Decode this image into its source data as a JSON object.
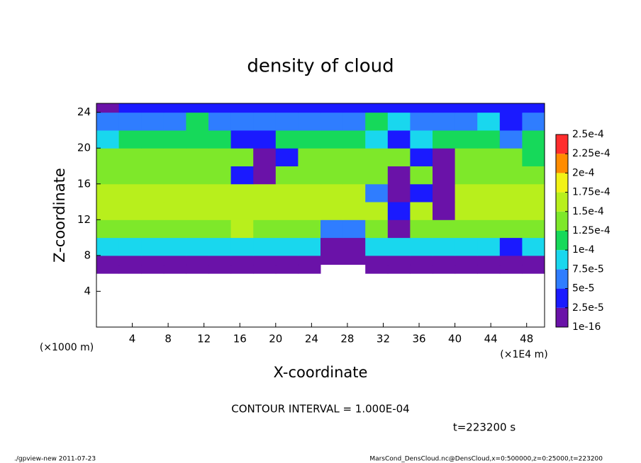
{
  "chart_data": {
    "type": "heatmap",
    "title": "density of cloud",
    "xlabel": "X-coordinate",
    "ylabel": "Z-coordinate",
    "x_unit": "(×1E4 m)",
    "y_unit": "(×1000 m)",
    "note": "CONTOUR INTERVAL = 1.000E-04",
    "time": "t=223200 s",
    "footer_left": "./gpview-new  2011-07-23",
    "footer_right": "MarsCond_DensCloud.nc@DensCloud,x=0:500000,z=0:25000,t=223200",
    "xlim": [
      0,
      50
    ],
    "ylim": [
      0,
      25
    ],
    "xticks": [
      4,
      8,
      12,
      16,
      20,
      24,
      28,
      32,
      36,
      40,
      44,
      48
    ],
    "yticks": [
      4,
      8,
      12,
      16,
      20,
      24
    ],
    "x_edges": [
      0,
      2.5,
      5,
      7.5,
      10,
      12.5,
      15,
      17.5,
      20,
      22.5,
      25,
      27.5,
      30,
      32.5,
      35,
      37.5,
      40,
      42.5,
      45,
      47.5,
      50
    ],
    "z_edges": [
      0,
      6,
      7,
      8,
      10,
      12,
      14,
      16,
      18,
      20,
      22,
      24,
      25
    ],
    "values": [
      [
        null,
        null,
        null,
        null,
        null,
        null,
        null,
        null,
        null,
        null,
        null,
        null,
        null,
        null,
        null,
        null,
        null,
        null,
        null,
        null
      ],
      [
        1e-05,
        1e-05,
        1e-05,
        1e-05,
        1e-05,
        1e-05,
        1e-05,
        1e-05,
        1e-05,
        1e-05,
        null,
        null,
        1e-05,
        1e-05,
        1e-05,
        1e-05,
        1e-05,
        1e-05,
        1e-05,
        1e-05
      ],
      [
        2e-05,
        2e-05,
        2e-05,
        2e-05,
        2e-05,
        2e-05,
        2e-05,
        2e-05,
        2e-05,
        2e-05,
        1e-05,
        1e-05,
        2e-05,
        2e-05,
        2e-05,
        2e-05,
        2e-05,
        2e-05,
        2e-05,
        2e-05
      ],
      [
        9e-05,
        9e-05,
        9e-05,
        9e-05,
        9e-05,
        9e-05,
        9e-05,
        9e-05,
        9e-05,
        9e-05,
        1e-05,
        1e-05,
        9e-05,
        9e-05,
        9e-05,
        9e-05,
        9e-05,
        9e-05,
        3e-05,
        9e-05
      ],
      [
        0.00013,
        0.00013,
        0.00013,
        0.00013,
        0.00013,
        0.00013,
        0.00015,
        0.00013,
        0.00013,
        0.00013,
        5e-05,
        5e-05,
        0.00013,
        2e-05,
        0.00013,
        0.00013,
        0.00013,
        0.00013,
        0.00013,
        0.00013
      ],
      [
        0.00015,
        0.00015,
        0.00015,
        0.00015,
        0.00015,
        0.00016,
        0.00015,
        0.00015,
        0.00017,
        0.00017,
        0.00015,
        0.00015,
        0.00015,
        3e-05,
        0.00015,
        1e-05,
        0.00015,
        0.00015,
        0.00015,
        0.00015
      ],
      [
        0.00015,
        0.00015,
        0.00015,
        0.00015,
        0.00015,
        0.00015,
        0.00016,
        0.00015,
        0.00015,
        0.00015,
        0.00015,
        0.00015,
        6e-05,
        1e-05,
        4e-05,
        1e-05,
        0.00015,
        0.00015,
        0.00015,
        0.00015
      ],
      [
        0.00014,
        0.00014,
        0.00014,
        0.00014,
        0.00014,
        0.00014,
        3e-05,
        1e-05,
        0.00014,
        0.00014,
        0.00014,
        0.00014,
        0.00014,
        1e-05,
        0.00014,
        2e-05,
        0.00014,
        0.00014,
        0.00014,
        0.00014
      ],
      [
        0.00013,
        0.00013,
        0.00013,
        0.00013,
        0.00013,
        0.00013,
        0.00013,
        1e-05,
        3e-05,
        0.00013,
        0.00013,
        0.00013,
        0.00013,
        0.00013,
        3e-05,
        1e-05,
        0.00013,
        0.00013,
        0.00013,
        0.00011
      ],
      [
        9e-05,
        0.00011,
        0.00011,
        0.00011,
        0.00011,
        0.00011,
        4e-05,
        3e-05,
        0.00011,
        0.00011,
        0.00011,
        0.00011,
        8e-05,
        4e-05,
        9e-05,
        0.00011,
        0.00011,
        0.00011,
        5e-05,
        0.00011
      ],
      [
        7e-05,
        7e-05,
        7e-05,
        7e-05,
        0.0001,
        7e-05,
        7e-05,
        7e-05,
        7e-05,
        7e-05,
        7e-05,
        7e-05,
        0.0001,
        9e-05,
        7e-05,
        7e-05,
        7e-05,
        8e-05,
        3e-05,
        7e-05
      ],
      [
        2e-05,
        3e-05,
        3e-05,
        3e-05,
        3e-05,
        3e-05,
        3e-05,
        3e-05,
        3e-05,
        3e-05,
        3e-05,
        3e-05,
        3e-05,
        3e-05,
        3e-05,
        3e-05,
        3e-05,
        3e-05,
        3e-05,
        3e-05
      ]
    ],
    "colorbar": {
      "ticks": [
        {
          "value": 1e-16,
          "label": "1e-16"
        },
        {
          "value": 2.5e-05,
          "label": "2.5e-5"
        },
        {
          "value": 5e-05,
          "label": "5e-5"
        },
        {
          "value": 7.5e-05,
          "label": "7.5e-5"
        },
        {
          "value": 0.0001,
          "label": "1e-4"
        },
        {
          "value": 0.000125,
          "label": "1.25e-4"
        },
        {
          "value": 0.00015,
          "label": "1.5e-4"
        },
        {
          "value": 0.000175,
          "label": "1.75e-4"
        },
        {
          "value": 0.0002,
          "label": "2e-4"
        },
        {
          "value": 0.000225,
          "label": "2.25e-4"
        },
        {
          "value": 0.00025,
          "label": "2.5e-4"
        }
      ],
      "colors": [
        "#6a12a8",
        "#1a1aff",
        "#2f7dff",
        "#19d7ee",
        "#16d95a",
        "#7ee82a",
        "#b8ef1c",
        "#f2f215",
        "#ff8c00",
        "#ff2d2d"
      ]
    }
  }
}
